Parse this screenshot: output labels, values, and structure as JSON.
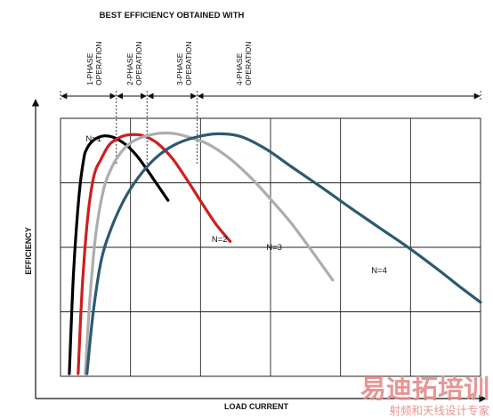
{
  "chart_data": {
    "type": "line",
    "title": "BEST EFFICIENCY OBTAINED WITH",
    "xlabel": "LOAD CURRENT",
    "ylabel": "EFFICIENCY",
    "xlim": [
      0,
      100
    ],
    "ylim": [
      0,
      100
    ],
    "grid": true,
    "grid_columns": 6,
    "grid_rows": 4,
    "phase_regions": [
      {
        "label_line1": "1-PHASE",
        "label_line2": "OPERATION",
        "x_start": 0,
        "x_end": 13.3
      },
      {
        "label_line1": "2-PHASE",
        "label_line2": "OPERATION",
        "x_start": 13.3,
        "x_end": 20.6
      },
      {
        "label_line1": "3-PHASE",
        "label_line2": "OPERATION",
        "x_start": 20.6,
        "x_end": 32.5
      },
      {
        "label_line1": "4-PHASE",
        "label_line2": "OPERATION",
        "x_start": 32.5,
        "x_end": 100
      }
    ],
    "series": [
      {
        "name": "N=1",
        "color": "#000000",
        "label_pos": [
          6,
          91
        ],
        "x": [
          2.1,
          3.1,
          4.4,
          5.5,
          6.2,
          7.5,
          9.0,
          10.5,
          12.1,
          14.0,
          16.0,
          18.0,
          20.0,
          22.0,
          24.0,
          25.6
        ],
        "y": [
          1,
          40,
          70,
          84,
          88,
          91,
          92.6,
          93.2,
          92.9,
          91.5,
          89.2,
          85.8,
          81.5,
          76.8,
          72,
          68.2
        ]
      },
      {
        "name": "N=2",
        "color": "#cc1f1f",
        "label_pos": [
          36,
          52
        ],
        "x": [
          4.2,
          5.2,
          6.5,
          8.0,
          9.6,
          11.5,
          13.5,
          15.5,
          17.8,
          20.0,
          23.0,
          26.5,
          30.0,
          33.5,
          37.0,
          40.4
        ],
        "y": [
          1,
          35,
          62,
          78,
          84,
          89.5,
          92.1,
          93.4,
          93.7,
          93.1,
          90.4,
          84.7,
          76.5,
          67.6,
          59,
          52.3
        ]
      },
      {
        "name": "N=3",
        "color": "#adadad",
        "label_pos": [
          49,
          49
        ],
        "x": [
          5.9,
          7.0,
          8.4,
          10.2,
          12.2,
          14.5,
          17.0,
          20.0,
          23.5,
          27.0,
          31.0,
          35.0,
          40.0,
          45.0,
          50.0,
          55.0,
          60.0,
          64.8
        ],
        "y": [
          1,
          30,
          55,
          72,
          81,
          87,
          90.8,
          93.0,
          94.2,
          94.1,
          92.5,
          90.1,
          84.8,
          77.5,
          68.7,
          59.2,
          48.2,
          37.3
        ]
      },
      {
        "name": "N=4",
        "color": "#2c5a70",
        "label_pos": [
          74,
          40
        ],
        "x": [
          6.3,
          7.8,
          9.7,
          12.0,
          15.0,
          18.5,
          22.5,
          27.0,
          32.0,
          37.5,
          43.0,
          49.0,
          55.0,
          62.0,
          69.0,
          76.0,
          83.0,
          90.0,
          95.0,
          100.0
        ],
        "y": [
          1,
          25,
          45,
          57,
          68,
          77,
          84.4,
          89.6,
          92.6,
          94.0,
          92.9,
          88.0,
          81.2,
          73.4,
          65.3,
          57.5,
          49.7,
          41.2,
          34.8,
          28.7
        ]
      }
    ]
  },
  "watermark": {
    "main": "易迪拓培训",
    "sub": "射频和天线设计专家",
    "color": "#e58a8a"
  }
}
